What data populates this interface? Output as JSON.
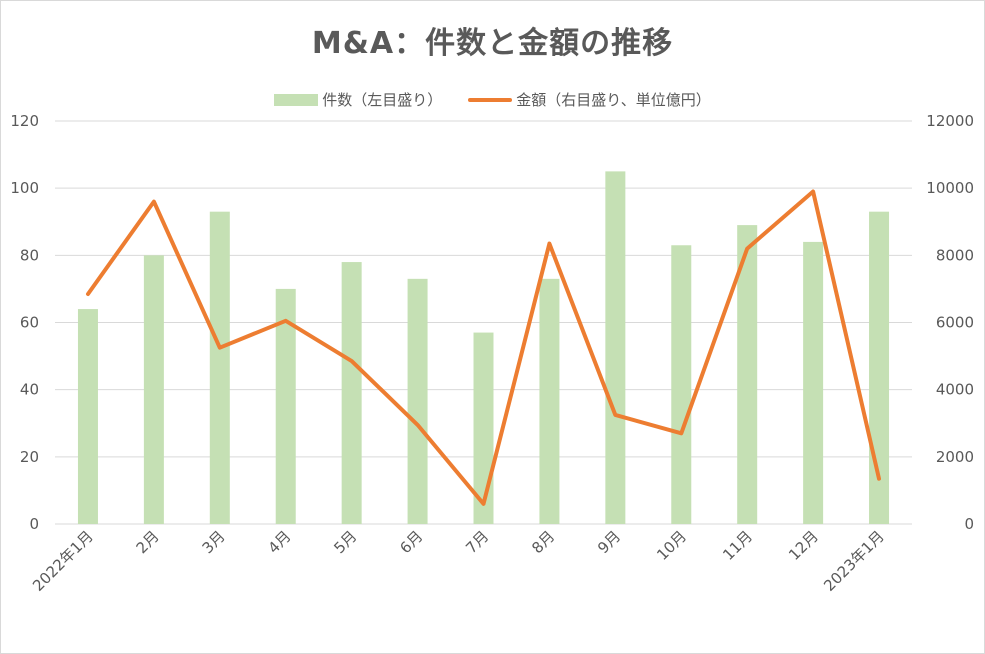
{
  "chart_data": {
    "type": "bar",
    "title": "M&A：件数と金額の推移",
    "categories": [
      "2022年1月",
      "2月",
      "3月",
      "4月",
      "5月",
      "6月",
      "7月",
      "8月",
      "9月",
      "10月",
      "11月",
      "12月",
      "2023年1月"
    ],
    "series": [
      {
        "name": "件数（左目盛り）",
        "type": "bar",
        "axis": "left",
        "color": "#c5e0b4",
        "values": [
          64,
          80,
          93,
          70,
          78,
          73,
          57,
          73,
          105,
          83,
          89,
          84,
          93
        ]
      },
      {
        "name": "金額（右目盛り、単位億円）",
        "type": "line",
        "axis": "right",
        "color": "#ed7d31",
        "values": [
          6850,
          9600,
          5250,
          6050,
          4850,
          2950,
          600,
          8350,
          3250,
          2700,
          8200,
          9900,
          1350
        ]
      }
    ],
    "ylim_left": [
      0,
      120
    ],
    "ylim_right": [
      0,
      12000
    ],
    "yticks_left": [
      "0",
      "20",
      "40",
      "60",
      "80",
      "100",
      "120"
    ],
    "yticks_right": [
      "0",
      "2000",
      "4000",
      "6000",
      "8000",
      "10000",
      "12000"
    ],
    "grid": true,
    "legend_position": "top"
  }
}
